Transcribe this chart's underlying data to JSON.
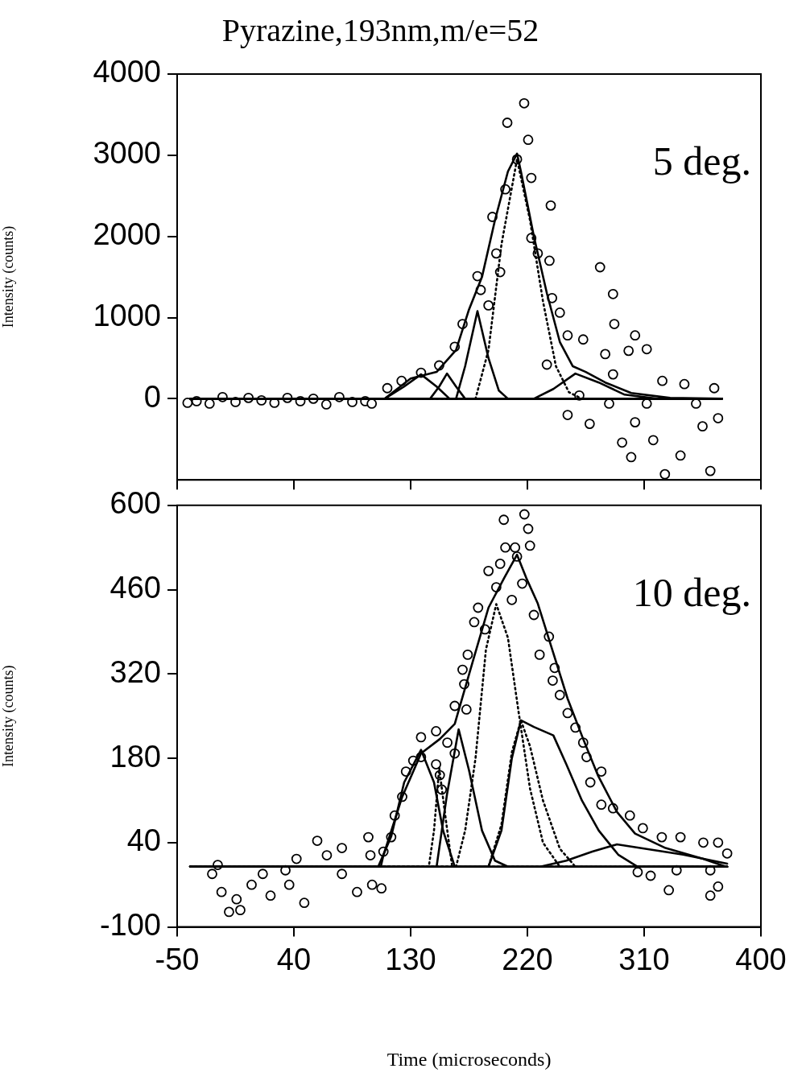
{
  "chart_data": [
    {
      "type": "scatter",
      "title": "Pyrazine,193nm,m/e=52",
      "ylabel": "Intensity (counts)",
      "xlim": [
        -50,
        400
      ],
      "ylim": [
        -1000,
        4000
      ],
      "xticks": [
        -50,
        40,
        130,
        220,
        310,
        400
      ],
      "yticks": [
        0,
        1000,
        2000,
        3000,
        4000
      ],
      "tick_labels": "y",
      "annotations": [
        "5 deg."
      ],
      "series": [
        {
          "marker": "circle",
          "color": "#000000",
          "x": [
            -42,
            -35,
            -25,
            -15,
            -5,
            5,
            15,
            25,
            35,
            45,
            55,
            65,
            75,
            85,
            95,
            100,
            112,
            123,
            138,
            152,
            164,
            170,
            181.5,
            184,
            190,
            193,
            196,
            199,
            203,
            204.5,
            212,
            217.5,
            220.6,
            223,
            223,
            228,
            237,
            238,
            239,
            245,
            251,
            235,
            251,
            260,
            263,
            268,
            276,
            280,
            283,
            286,
            286,
            287,
            293,
            298,
            300,
            303,
            303,
            312,
            312,
            317,
            324,
            326,
            338,
            341,
            350,
            355,
            361,
            364,
            367
          ],
          "values": [
            -50,
            -30,
            -60,
            20,
            -40,
            10,
            -20,
            -50,
            10,
            -30,
            0,
            -70,
            20,
            -40,
            -30,
            -60,
            130,
            220,
            320,
            410,
            640,
            920,
            1510,
            1340,
            1150,
            2240,
            1790,
            1560,
            2580,
            3400,
            2950,
            3640,
            3190,
            2720,
            1980,
            1790,
            1700,
            2380,
            1240,
            1060,
            780,
            420,
            -200,
            40,
            730,
            -310,
            1620,
            550,
            -60,
            1290,
            300,
            920,
            -540,
            590,
            -720,
            780,
            -290,
            610,
            -60,
            -510,
            220,
            -930,
            -700,
            180,
            -60,
            -340,
            -890,
            130,
            -240
          ]
        },
        {
          "type": "line",
          "marker": "none",
          "line_style": "solid",
          "color": "#000000",
          "x": [
            -40,
            110,
            130,
            150,
            165,
            175,
            185,
            195,
            205,
            212,
            215,
            225,
            235,
            245,
            255,
            265,
            280,
            300,
            330,
            370
          ],
          "values": [
            0,
            0,
            250,
            330,
            600,
            1100,
            1500,
            2200,
            2800,
            3020,
            2800,
            2000,
            1300,
            700,
            400,
            330,
            200,
            70,
            10,
            0
          ]
        },
        {
          "type": "line",
          "marker": "none",
          "line_style": "solid",
          "color": "#000000",
          "x": [
            -40,
            110,
            125,
            138,
            150,
            160,
            370
          ],
          "values": [
            0,
            0,
            150,
            300,
            150,
            0,
            0
          ]
        },
        {
          "type": "line",
          "marker": "none",
          "line_style": "solid",
          "color": "#000000",
          "x": [
            -40,
            145,
            152,
            158,
            165,
            172,
            370
          ],
          "values": [
            0,
            0,
            150,
            310,
            150,
            0,
            0
          ]
        },
        {
          "type": "line",
          "marker": "none",
          "line_style": "solid",
          "color": "#000000",
          "x": [
            -40,
            165,
            172,
            181.5,
            190,
            198,
            205,
            370
          ],
          "values": [
            0,
            0,
            400,
            1080,
            500,
            100,
            0,
            0
          ]
        },
        {
          "type": "line",
          "marker": "none",
          "line_style": "dotted",
          "color": "#000000",
          "x": [
            -40,
            180,
            190,
            200,
            212,
            222,
            232,
            242,
            252,
            262,
            370
          ],
          "values": [
            0,
            0,
            600,
            1900,
            2950,
            2200,
            1200,
            400,
            80,
            0,
            0
          ]
        },
        {
          "type": "line",
          "marker": "none",
          "line_style": "solid",
          "color": "#000000",
          "x": [
            -40,
            225,
            240,
            257,
            275,
            295,
            320,
            370
          ],
          "values": [
            0,
            0,
            120,
            310,
            200,
            50,
            0,
            0
          ]
        }
      ]
    },
    {
      "type": "scatter",
      "xlabel": "Time (microseconds)",
      "ylabel": "Intensity (counts)",
      "xlim": [
        -50,
        400
      ],
      "ylim": [
        -100,
        600
      ],
      "xticks": [
        -50,
        40,
        130,
        220,
        310,
        400
      ],
      "yticks": [
        -100,
        40,
        180,
        320,
        460,
        600
      ],
      "annotations": [
        "10 deg."
      ],
      "series": [
        {
          "marker": "circle",
          "color": "#000000",
          "x": [
            -23,
            -18.7,
            -15.8,
            -10,
            -4.2,
            -1.3,
            7.4,
            16,
            22,
            33.5,
            36.4,
            42,
            48,
            58,
            65.4,
            77,
            77,
            88.7,
            97.4,
            99,
            100.3,
            107.5,
            109,
            115,
            117.7,
            123.5,
            126.4,
            132,
            138,
            138,
            149.6,
            149.6,
            152.5,
            154,
            158.3,
            164,
            164,
            170,
            171.3,
            173,
            174,
            179,
            182,
            187.3,
            190,
            196,
            199,
            201.8,
            203,
            208,
            210.5,
            212,
            216,
            217.7,
            220.6,
            222,
            225,
            229.4,
            236.6,
            239.5,
            241,
            245,
            251,
            257,
            263,
            265.6,
            268.5,
            277,
            277,
            286,
            299,
            305,
            309,
            315,
            323.6,
            329,
            335,
            338,
            355.6,
            361,
            361,
            367,
            367,
            374
          ],
          "values": [
            -12,
            3,
            -42,
            -75,
            -54,
            -72,
            -30,
            -12,
            -48,
            -6,
            -30,
            13,
            -60,
            43,
            19,
            31,
            -12,
            -42,
            49,
            19,
            -30,
            -36,
            25,
            49,
            85,
            116,
            158,
            176,
            215,
            182,
            225,
            170,
            152,
            128,
            206,
            188,
            267,
            327,
            303,
            261,
            352,
            406,
            430,
            394,
            491,
            464,
            503,
            576,
            530,
            443,
            530,
            515,
            470,
            585,
            561,
            533,
            418,
            352,
            382,
            309,
            330,
            285,
            255,
            231,
            206,
            182,
            140,
            158,
            103,
            97,
            85,
            -9,
            64,
            -15,
            49,
            -39,
            -6,
            49,
            40,
            -48,
            -6,
            40,
            -33,
            22
          ]
        },
        {
          "type": "line",
          "marker": "none",
          "line_style": "solid",
          "color": "#000000",
          "x": [
            -40,
            107,
            109,
            123.5,
            138,
            152.5,
            164,
            178.6,
            190,
            202,
            212,
            219.2,
            228,
            239.5,
            251,
            263,
            274.3,
            289,
            303,
            326.5,
            355.5,
            373
          ],
          "values": [
            0,
            0,
            19,
            116,
            188,
            212,
            237,
            346,
            430,
            479,
            518,
            479,
            437,
            358,
            279,
            212,
            152,
            91,
            55,
            31,
            13,
            0
          ]
        },
        {
          "type": "line",
          "marker": "none",
          "line_style": "solid",
          "color": "#000000",
          "x": [
            -40,
            105,
            115,
            125,
            138,
            148,
            155,
            164,
            374
          ],
          "values": [
            0,
            0,
            50,
            140,
            194,
            140,
            60,
            0,
            0
          ]
        },
        {
          "type": "line",
          "marker": "none",
          "line_style": "dotted",
          "color": "#000000",
          "x": [
            -40,
            144,
            148,
            152,
            157,
            162,
            374
          ],
          "values": [
            0,
            0,
            60,
            164,
            80,
            0,
            0
          ]
        },
        {
          "type": "line",
          "marker": "none",
          "line_style": "solid",
          "color": "#000000",
          "x": [
            -40,
            150,
            158,
            167,
            175,
            185,
            195,
            205,
            374
          ],
          "values": [
            0,
            0,
            120,
            228,
            160,
            60,
            10,
            0,
            0
          ]
        },
        {
          "type": "line",
          "marker": "none",
          "line_style": "dotted",
          "color": "#000000",
          "x": [
            -40,
            165,
            172,
            180,
            188,
            196,
            205,
            213,
            222,
            232,
            245,
            374
          ],
          "values": [
            0,
            0,
            60,
            180,
            360,
            436,
            380,
            260,
            130,
            40,
            0,
            0
          ]
        },
        {
          "type": "line",
          "marker": "none",
          "line_style": "dotted",
          "color": "#000000",
          "x": [
            -40,
            190,
            200,
            208,
            215,
            222,
            232,
            245,
            257,
            374
          ],
          "values": [
            0,
            0,
            70,
            190,
            243,
            200,
            110,
            30,
            0,
            0
          ]
        },
        {
          "type": "line",
          "marker": "none",
          "line_style": "solid",
          "color": "#000000",
          "x": [
            -40,
            190,
            200,
            208,
            215,
            225,
            240,
            250,
            262,
            275,
            290,
            305,
            374
          ],
          "values": [
            0,
            0,
            60,
            180,
            243,
            232,
            218,
            170,
            110,
            60,
            20,
            0,
            0
          ]
        },
        {
          "type": "line",
          "marker": "none",
          "line_style": "solid",
          "color": "#000000",
          "x": [
            -40,
            230,
            250,
            270,
            289,
            310,
            340,
            374
          ],
          "values": [
            0,
            0,
            10,
            25,
            37,
            30,
            20,
            5
          ]
        }
      ]
    }
  ]
}
